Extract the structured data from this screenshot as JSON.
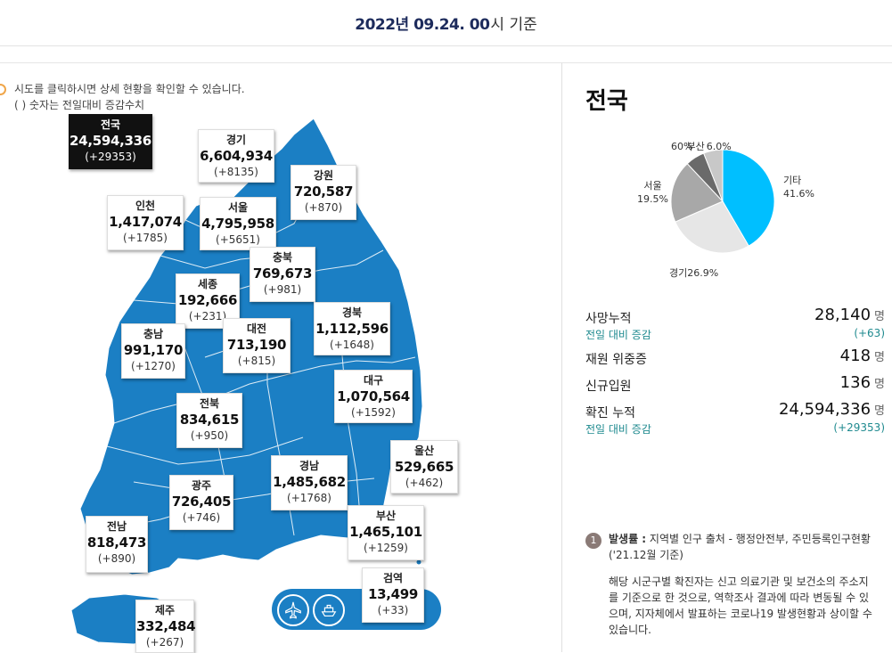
{
  "header": {
    "date": "2022년 09.24. 00",
    "suffix": "시 기준"
  },
  "notice": {
    "line1": "시도를 클릭하시면 상세 현황을 확인할 수 있습니다.",
    "line2": "( ) 숫자는 전일대비 증감수치"
  },
  "regions": {
    "national": {
      "name": "전국",
      "total": "24,594,336",
      "change": "(+29353)"
    },
    "gyeonggi": {
      "name": "경기",
      "total": "6,604,934",
      "change": "(+8135)"
    },
    "gangwon": {
      "name": "강원",
      "total": "720,587",
      "change": "(+870)"
    },
    "incheon": {
      "name": "인천",
      "total": "1,417,074",
      "change": "(+1785)"
    },
    "seoul": {
      "name": "서울",
      "total": "4,795,958",
      "change": "(+5651)"
    },
    "chungbuk": {
      "name": "충북",
      "total": "769,673",
      "change": "(+981)"
    },
    "sejong": {
      "name": "세종",
      "total": "192,666",
      "change": "(+231)"
    },
    "gyeongbuk": {
      "name": "경북",
      "total": "1,112,596",
      "change": "(+1648)"
    },
    "chungnam": {
      "name": "충남",
      "total": "991,170",
      "change": "(+1270)"
    },
    "daejeon": {
      "name": "대전",
      "total": "713,190",
      "change": "(+815)"
    },
    "daegu": {
      "name": "대구",
      "total": "1,070,564",
      "change": "(+1592)"
    },
    "jeonbuk": {
      "name": "전북",
      "total": "834,615",
      "change": "(+950)"
    },
    "ulsan": {
      "name": "울산",
      "total": "529,665",
      "change": "(+462)"
    },
    "gyeongnam": {
      "name": "경남",
      "total": "1,485,682",
      "change": "(+1768)"
    },
    "gwangju": {
      "name": "광주",
      "total": "726,405",
      "change": "(+746)"
    },
    "jeonnam": {
      "name": "전남",
      "total": "818,473",
      "change": "(+890)"
    },
    "busan": {
      "name": "부산",
      "total": "1,465,101",
      "change": "(+1259)"
    },
    "quarantine": {
      "name": "검역",
      "total": "13,499",
      "change": "(+33)"
    },
    "jeju": {
      "name": "제주",
      "total": "332,484",
      "change": "(+267)"
    }
  },
  "quarantine_icons": [
    "airplane-icon",
    "ship-icon"
  ],
  "colors": {
    "map_fill": "#1b7fc4",
    "pie_other": "#00bfff",
    "pie_gyeonggi": "#e6e6e6",
    "pie_seoul": "#a8a8a8",
    "pie_busan": "#6a6a6a",
    "pie_sixth": "#c8c8c8",
    "accent_teal": "#1f8a8f"
  },
  "right": {
    "title": "전국",
    "pie_labels": {
      "other": {
        "name": "기타",
        "pct": "41.6%"
      },
      "gyeonggi": "경기26.9%",
      "seoul": {
        "name": "서울",
        "pct": "19.5%"
      },
      "busan_left": "60%",
      "busan_name": "부산",
      "busan_right": "6.0%"
    },
    "stats": {
      "deaths_label": "사망누적",
      "deaths_value": "28,140",
      "deaths_unit": "명",
      "deaths_change_label": "전일 대비 증감",
      "deaths_change": "(+63)",
      "critical_label": "재원 위중증",
      "critical_value": "418",
      "critical_unit": "명",
      "entry_label": "신규입원",
      "entry_value": "136",
      "entry_unit": "명",
      "total_label": "확진 누적",
      "total_value": "24,594,336",
      "total_unit": "명",
      "total_change_label": "전일 대비 증감",
      "total_change": "(+29353)"
    },
    "note": {
      "badge": "1",
      "title_bold": "발생률 :",
      "title_rest": " 지역별 인구 출처 - 행정안전부, 주민등록인구현황",
      "title_line2": "('21.12월 기준)",
      "body": "해당 시군구별 확진자는 신고 의료기관 및 보건소의 주소지를 기준으로 한 것으로, 역학조사 결과에 따라 변동될 수 있으며, 지자체에서 발표하는 코로나19 발생현황과 상이할 수 있습니다."
    }
  },
  "chart_data": {
    "type": "pie",
    "categories": [
      "기타",
      "경기",
      "서울",
      "부산",
      ""
    ],
    "values": [
      41.6,
      26.9,
      19.5,
      6.0,
      6.0
    ]
  }
}
